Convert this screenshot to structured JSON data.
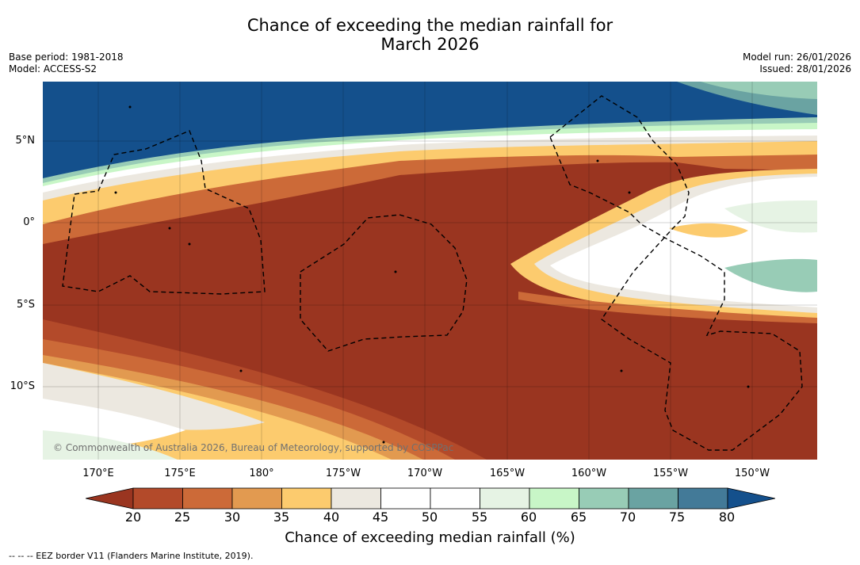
{
  "header": {
    "title_line1": "Chance of exceeding the median rainfall for",
    "title_line2": "March 2026",
    "base_period": "Base period: 1981-2018",
    "model": "Model: ACCESS-S2",
    "model_run": "Model run: 26/01/2026",
    "issued": "Issued: 28/01/2026"
  },
  "map": {
    "lat_labels": [
      "5°N",
      "0°",
      "5°S",
      "10°S"
    ],
    "lon_labels": [
      "170°E",
      "175°E",
      "180°",
      "175°W",
      "170°W",
      "165°W",
      "160°W",
      "155°W",
      "150°W"
    ],
    "copyright": "© Commonwealth of Australia 2026, Bureau of Meteorology, supported by COSPPac"
  },
  "colorbar": {
    "ticks": [
      "20",
      "25",
      "30",
      "35",
      "40",
      "45",
      "50",
      "55",
      "60",
      "65",
      "70",
      "75",
      "80"
    ],
    "colors": [
      "#9a3520",
      "#b34a2a",
      "#cc6a38",
      "#e29a50",
      "#fccb6e",
      "#ece8e0",
      "#ffffff",
      "#ffffff",
      "#e6f3e4",
      "#c8f6c7",
      "#98ccb6",
      "#6aa3a2",
      "#437a98",
      "#14508c"
    ],
    "label": "Chance of exceeding median rainfall (%)"
  },
  "legend": {
    "eez_note": "--  --  -- EEZ border V11 (Flanders Marine Institute, 2019)."
  }
}
